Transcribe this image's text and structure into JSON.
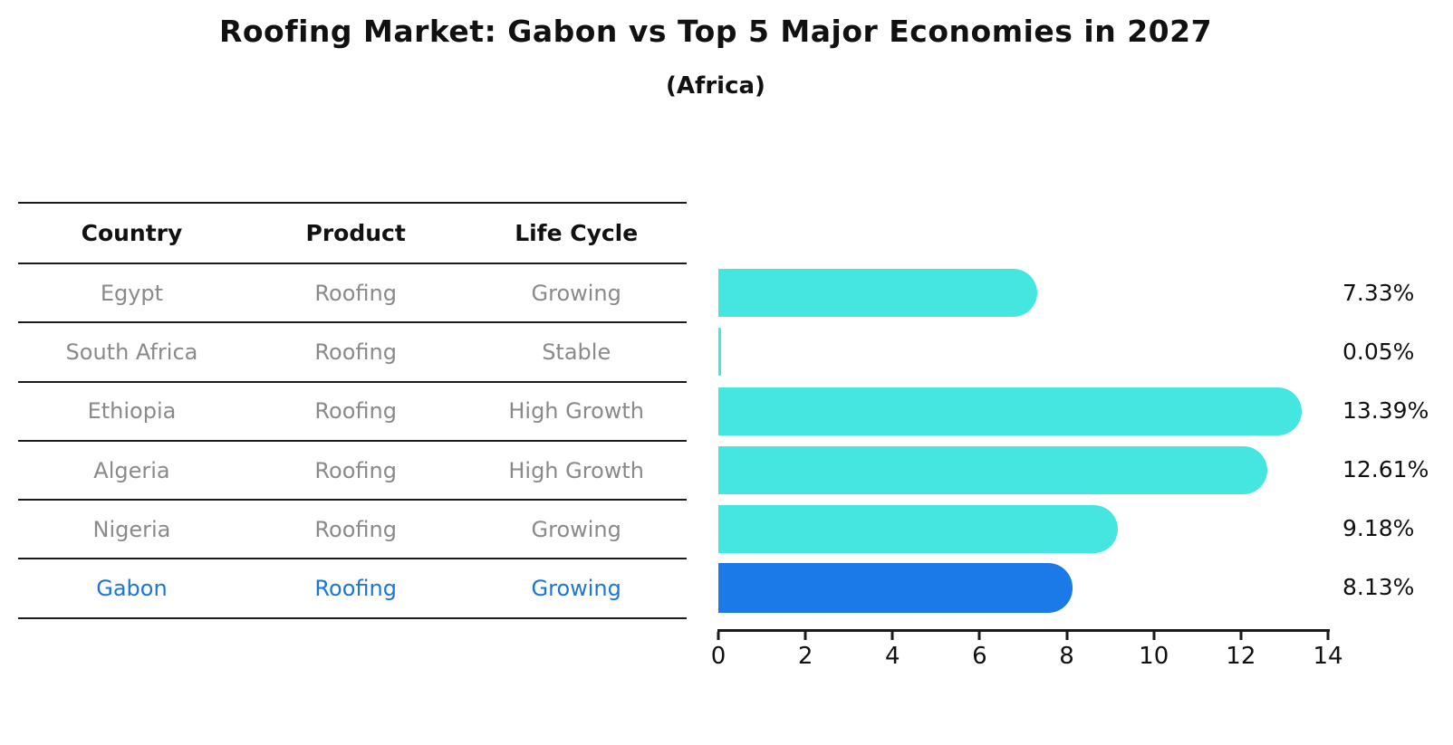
{
  "title": "Roofing Market: Gabon vs Top 5 Major Economies in 2027",
  "subtitle": "(Africa)",
  "table": {
    "headers": [
      "Country",
      "Product",
      "Life Cycle"
    ],
    "rows": [
      {
        "country": "Egypt",
        "product": "Roofing",
        "life_cycle": "Growing"
      },
      {
        "country": "South Africa",
        "product": "Roofing",
        "life_cycle": "Stable"
      },
      {
        "country": "Ethiopia",
        "product": "Roofing",
        "life_cycle": "High Growth"
      },
      {
        "country": "Algeria",
        "product": "Roofing",
        "life_cycle": "High Growth"
      },
      {
        "country": "Nigeria",
        "product": "Roofing",
        "life_cycle": "Growing"
      },
      {
        "country": "Gabon",
        "product": "Roofing",
        "life_cycle": "Growing"
      }
    ]
  },
  "chart_data": {
    "type": "bar",
    "orientation": "horizontal",
    "categories": [
      "Egypt",
      "South Africa",
      "Ethiopia",
      "Algeria",
      "Nigeria",
      "Gabon"
    ],
    "values": [
      7.33,
      0.05,
      13.39,
      12.61,
      9.18,
      8.13
    ],
    "value_labels": [
      "7.33%",
      "0.05%",
      "13.39%",
      "12.61%",
      "9.18%",
      "8.13%"
    ],
    "x_ticks": [
      "0",
      "2",
      "4",
      "6",
      "8",
      "10",
      "12",
      "14"
    ],
    "xlim": [
      0,
      14
    ],
    "highlight_index": 5,
    "grid": false,
    "legend": "none",
    "title": "Roofing Market: Gabon vs Top 5 Major Economies in 2027",
    "subtitle": "(Africa)"
  },
  "colors": {
    "bar_default": "#45e6e0",
    "bar_highlight": "#1b79e8",
    "highlight_text": "#1b76d9",
    "row_text": "#8a8a8a",
    "heading_text": "#111111",
    "rule": "#1a1a1a"
  }
}
